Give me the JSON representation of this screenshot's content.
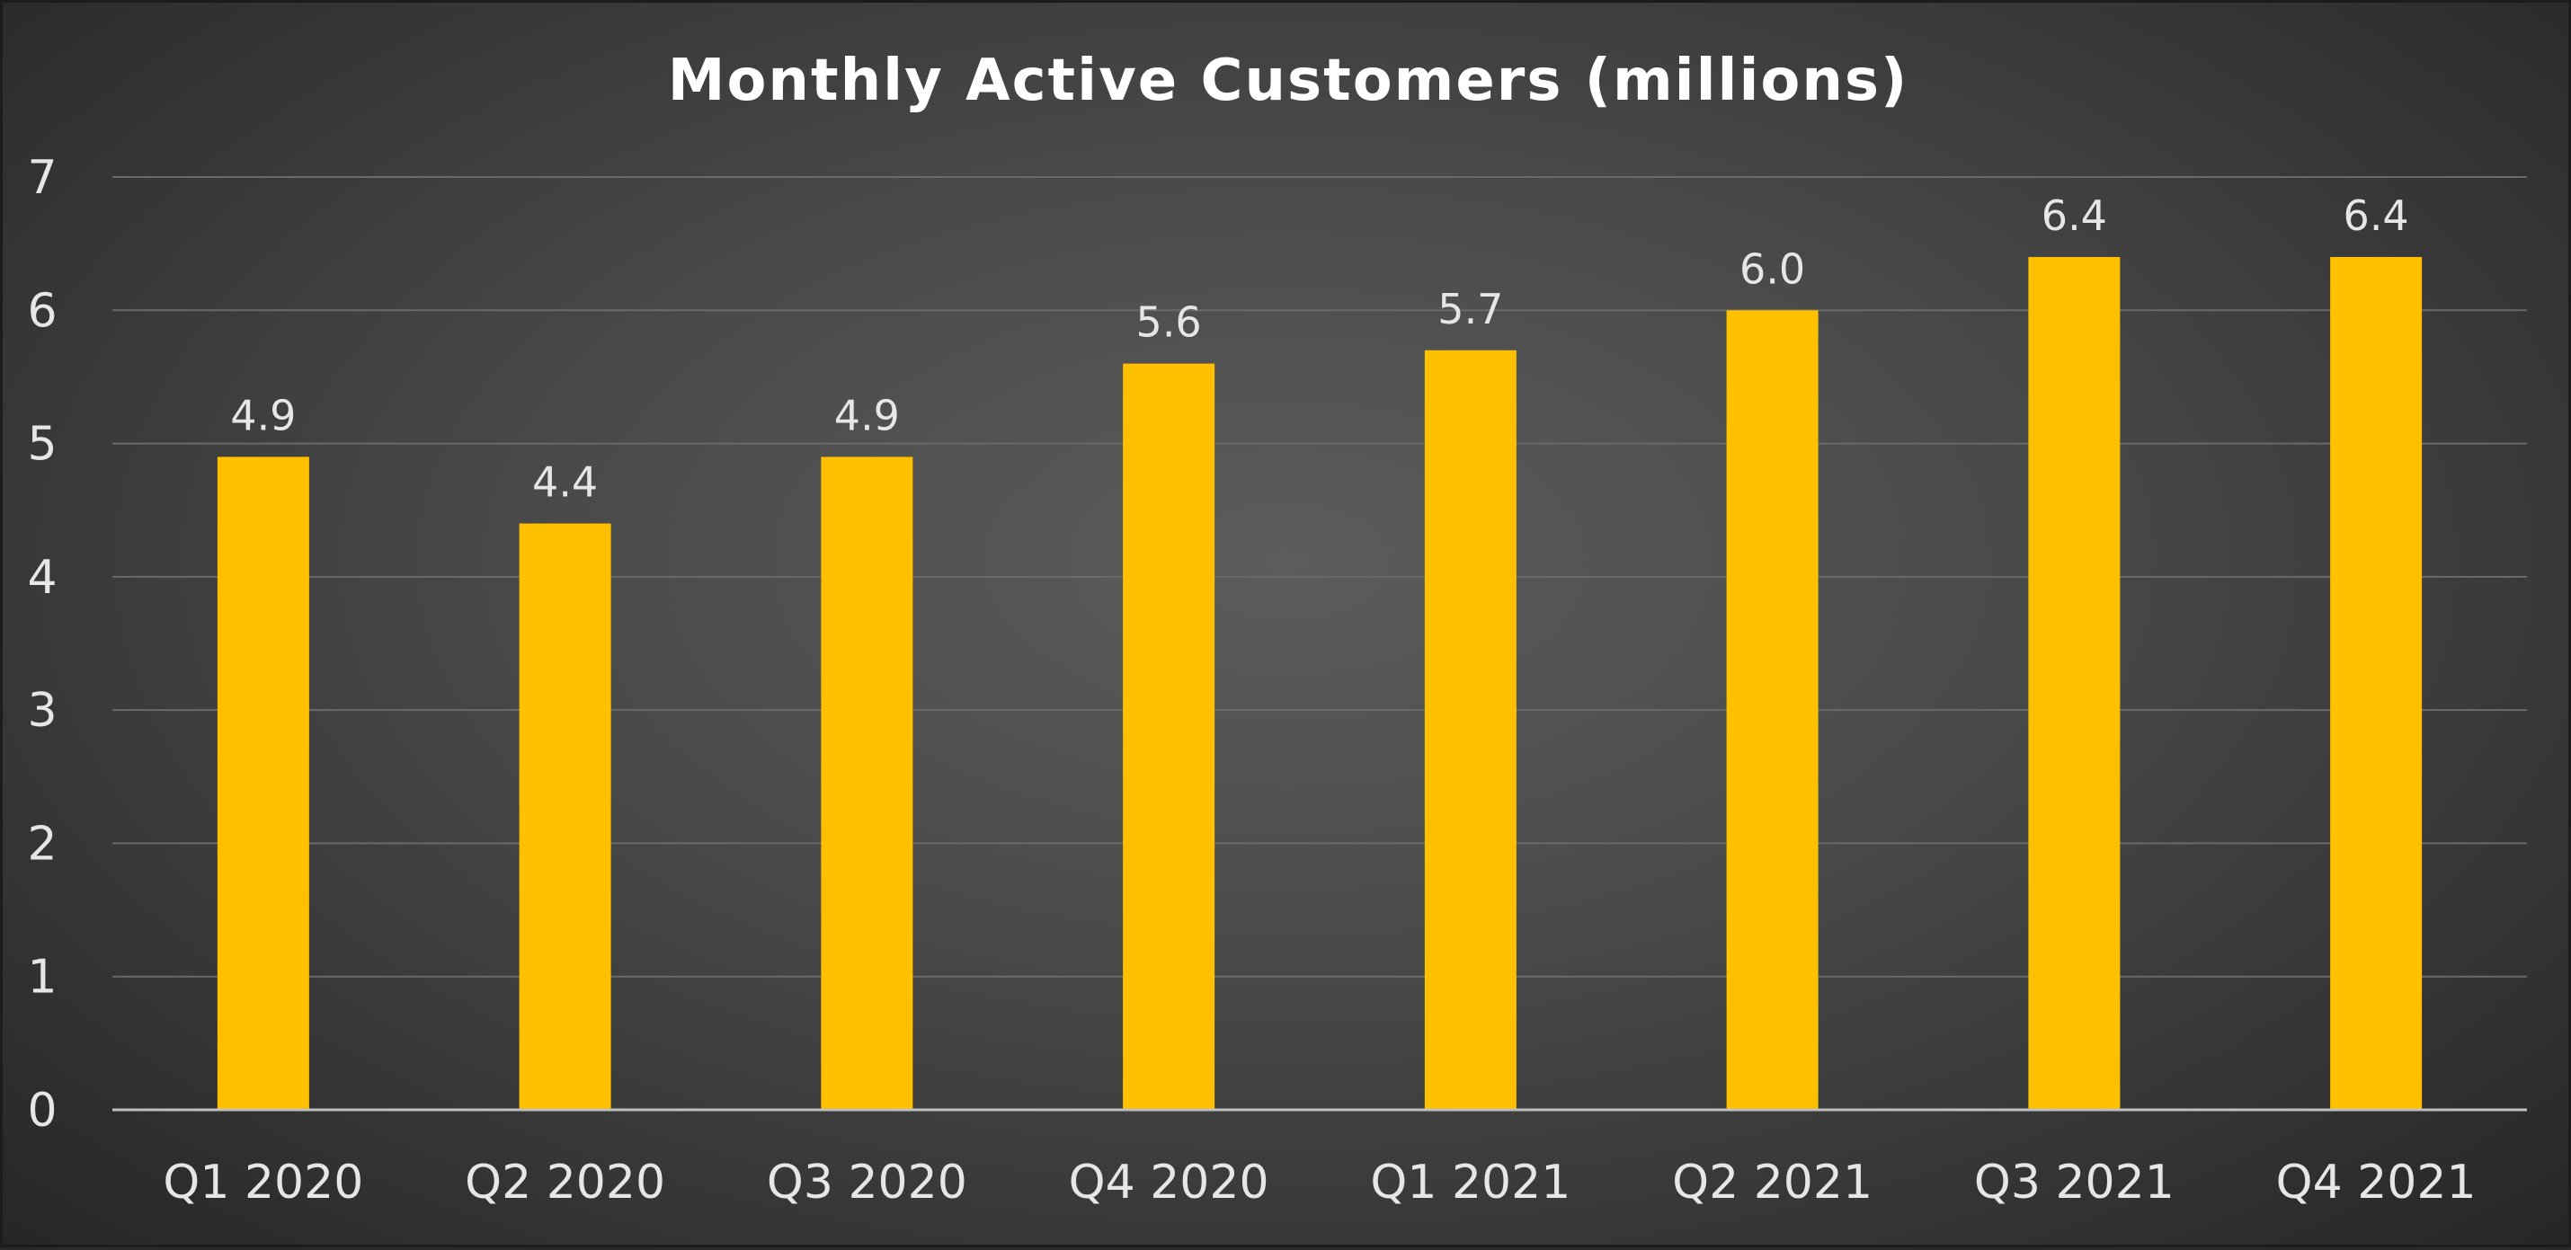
{
  "chart_data": {
    "type": "bar",
    "title": "Monthly Active Customers (millions)",
    "xlabel": "",
    "ylabel": "",
    "categories": [
      "Q1 2020",
      "Q2 2020",
      "Q3 2020",
      "Q4 2020",
      "Q1 2021",
      "Q2 2021",
      "Q3 2021",
      "Q4 2021"
    ],
    "values": [
      4.9,
      4.4,
      4.9,
      5.6,
      5.7,
      6.0,
      6.4,
      6.4
    ],
    "value_labels": [
      "4.9",
      "4.4",
      "4.9",
      "5.6",
      "5.7",
      "6.0",
      "6.4",
      "6.4"
    ],
    "ylim": [
      0,
      7
    ],
    "yticks": [
      "0",
      "1",
      "2",
      "3",
      "4",
      "5",
      "6",
      "7"
    ],
    "grid": true,
    "legend": "none",
    "colors": {
      "bar": "#FFC000",
      "grid": "#6a6a6a",
      "axis": "#bfbfbf",
      "text": "#e6e6e6",
      "title": "#ffffff"
    }
  }
}
